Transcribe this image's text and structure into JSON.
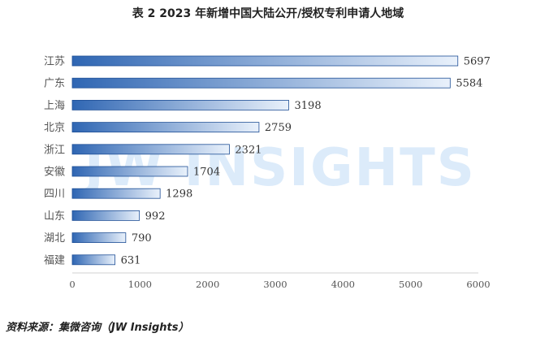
{
  "title": "表 2 2023 年新增中国大陆公开/授权专利申请人地域",
  "source": "资料来源：集微咨询（JW Insights）",
  "watermark": "JW INSIGHTS",
  "colors": {
    "bar_dark": "#2f66b3",
    "bar_light": "#e9f1fb",
    "bar_border": "#1f4f96"
  },
  "chart_data": {
    "type": "bar",
    "orientation": "horizontal",
    "categories": [
      "江苏",
      "广东",
      "上海",
      "北京",
      "浙江",
      "安徽",
      "四川",
      "山东",
      "湖北",
      "福建"
    ],
    "values": [
      5697,
      5584,
      3198,
      2759,
      2321,
      1704,
      1298,
      992,
      790,
      631
    ],
    "xlim": [
      0,
      6000
    ],
    "xticks": [
      0,
      1000,
      2000,
      3000,
      4000,
      5000,
      6000
    ],
    "data_labels": true,
    "grid": false
  }
}
